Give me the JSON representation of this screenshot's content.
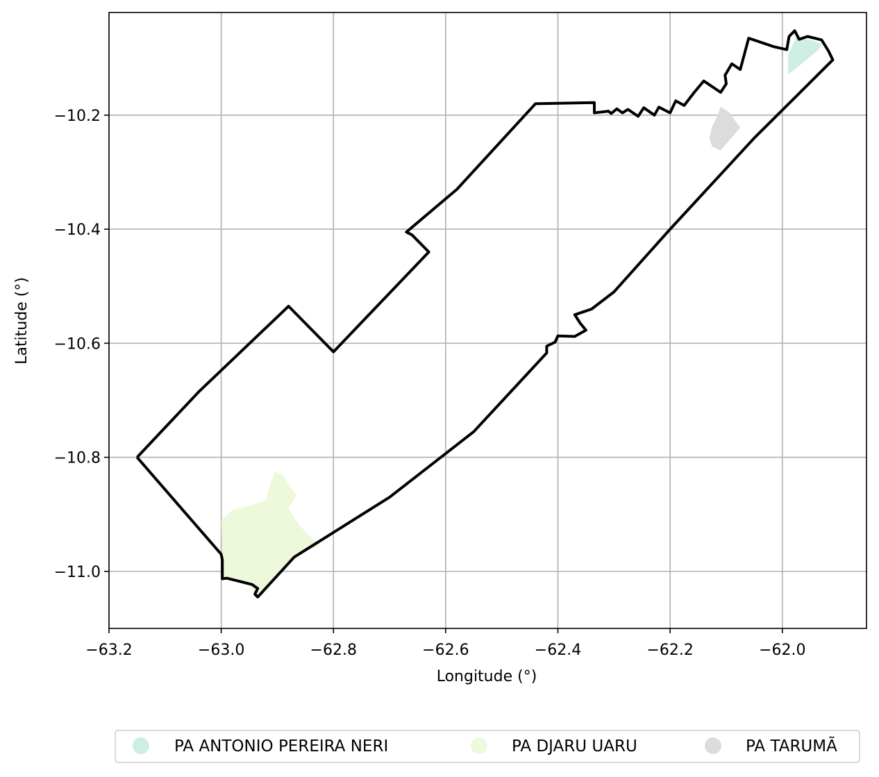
{
  "axes": {
    "xlabel": "Longitude (°)",
    "ylabel": "Latitude (°)",
    "xlim": [
      -63.2,
      -61.85
    ],
    "ylim": [
      -11.1,
      -10.02
    ],
    "xticks": [
      -63.2,
      -63.0,
      -62.8,
      -62.6,
      -62.4,
      -62.2,
      -62.0
    ],
    "yticks": [
      -10.2,
      -10.4,
      -10.6,
      -10.8,
      -11.0
    ],
    "xtick_labels": [
      "−63.2",
      "−63.0",
      "−62.8",
      "−62.6",
      "−62.4",
      "−62.2",
      "−62.0"
    ],
    "ytick_labels": [
      "−10.2",
      "−10.4",
      "−10.6",
      "−10.8",
      "−11.0"
    ],
    "grid": true
  },
  "legend": {
    "position": "bottom-center, below plot",
    "items": [
      {
        "label": "PA ANTONIO PEREIRA NERI",
        "color": "#cdeee0"
      },
      {
        "label": "PA DJARU UARU",
        "color": "#eef9dc"
      },
      {
        "label": "PA TARUMÃ",
        "color": "#dcdcdc"
      }
    ]
  },
  "chart_data": {
    "type": "map",
    "boundary_color": "#000000",
    "boundary": [
      [
        -63.15,
        -10.8
      ],
      [
        -63.04,
        -10.685
      ],
      [
        -62.88,
        -10.535
      ],
      [
        -62.8,
        -10.615
      ],
      [
        -62.63,
        -10.44
      ],
      [
        -62.66,
        -10.41
      ],
      [
        -62.67,
        -10.405
      ],
      [
        -62.58,
        -10.33
      ],
      [
        -62.44,
        -10.18
      ],
      [
        -62.335,
        -10.178
      ],
      [
        -62.335,
        -10.196
      ],
      [
        -62.31,
        -10.193
      ],
      [
        -62.305,
        -10.197
      ],
      [
        -62.295,
        -10.189
      ],
      [
        -62.285,
        -10.196
      ],
      [
        -62.275,
        -10.19
      ],
      [
        -62.257,
        -10.202
      ],
      [
        -62.247,
        -10.187
      ],
      [
        -62.228,
        -10.2
      ],
      [
        -62.22,
        -10.186
      ],
      [
        -62.2,
        -10.196
      ],
      [
        -62.19,
        -10.175
      ],
      [
        -62.175,
        -10.183
      ],
      [
        -62.157,
        -10.16
      ],
      [
        -62.14,
        -10.14
      ],
      [
        -62.125,
        -10.15
      ],
      [
        -62.11,
        -10.16
      ],
      [
        -62.1,
        -10.145
      ],
      [
        -62.102,
        -10.13
      ],
      [
        -62.09,
        -10.11
      ],
      [
        -62.075,
        -10.12
      ],
      [
        -62.06,
        -10.065
      ],
      [
        -62.015,
        -10.08
      ],
      [
        -61.992,
        -10.085
      ],
      [
        -61.988,
        -10.062
      ],
      [
        -61.978,
        -10.052
      ],
      [
        -61.97,
        -10.067
      ],
      [
        -61.955,
        -10.062
      ],
      [
        -61.93,
        -10.068
      ],
      [
        -61.918,
        -10.087
      ],
      [
        -61.91,
        -10.103
      ],
      [
        -62.05,
        -10.24
      ],
      [
        -62.2,
        -10.4
      ],
      [
        -62.3,
        -10.51
      ],
      [
        -62.34,
        -10.54
      ],
      [
        -62.355,
        -10.545
      ],
      [
        -62.37,
        -10.55
      ],
      [
        -62.36,
        -10.565
      ],
      [
        -62.35,
        -10.577
      ],
      [
        -62.37,
        -10.588
      ],
      [
        -62.4,
        -10.587
      ],
      [
        -62.405,
        -10.598
      ],
      [
        -62.42,
        -10.605
      ],
      [
        -62.42,
        -10.617
      ],
      [
        -62.55,
        -10.755
      ],
      [
        -62.7,
        -10.87
      ],
      [
        -62.87,
        -10.975
      ],
      [
        -62.935,
        -11.045
      ],
      [
        -62.94,
        -11.04
      ],
      [
        -62.935,
        -11.03
      ],
      [
        -62.945,
        -11.023
      ],
      [
        -62.965,
        -11.018
      ],
      [
        -62.99,
        -11.012
      ],
      [
        -62.998,
        -11.013
      ],
      [
        -62.998,
        -10.98
      ],
      [
        -63.0,
        -10.97
      ],
      [
        -63.15,
        -10.8
      ]
    ],
    "areas": [
      {
        "name": "PA ANTONIO PEREIRA NERI",
        "color": "#cdeee0",
        "polygon": [
          [
            -61.975,
            -10.062
          ],
          [
            -61.95,
            -10.068
          ],
          [
            -61.93,
            -10.075
          ],
          [
            -61.935,
            -10.085
          ],
          [
            -61.978,
            -10.12
          ],
          [
            -61.99,
            -10.128
          ],
          [
            -61.99,
            -10.095
          ]
        ]
      },
      {
        "name": "PA DJARU UARU",
        "color": "#eef9dc",
        "polygon": [
          [
            -63.0,
            -10.91
          ],
          [
            -62.98,
            -10.892
          ],
          [
            -62.95,
            -10.885
          ],
          [
            -62.92,
            -10.875
          ],
          [
            -62.915,
            -10.855
          ],
          [
            -62.905,
            -10.825
          ],
          [
            -62.89,
            -10.83
          ],
          [
            -62.875,
            -10.855
          ],
          [
            -62.865,
            -10.865
          ],
          [
            -62.88,
            -10.89
          ],
          [
            -62.86,
            -10.92
          ],
          [
            -62.825,
            -10.955
          ],
          [
            -62.87,
            -10.975
          ],
          [
            -62.935,
            -11.045
          ],
          [
            -62.95,
            -11.025
          ],
          [
            -62.998,
            -11.013
          ],
          [
            -62.998,
            -10.975
          ]
        ]
      },
      {
        "name": "PA TARUMÃ",
        "color": "#dcdcdc",
        "polygon": [
          [
            -62.11,
            -10.185
          ],
          [
            -62.095,
            -10.195
          ],
          [
            -62.075,
            -10.222
          ],
          [
            -62.11,
            -10.262
          ],
          [
            -62.125,
            -10.255
          ],
          [
            -62.13,
            -10.24
          ],
          [
            -62.125,
            -10.22
          ],
          [
            -62.115,
            -10.2
          ]
        ]
      }
    ]
  }
}
